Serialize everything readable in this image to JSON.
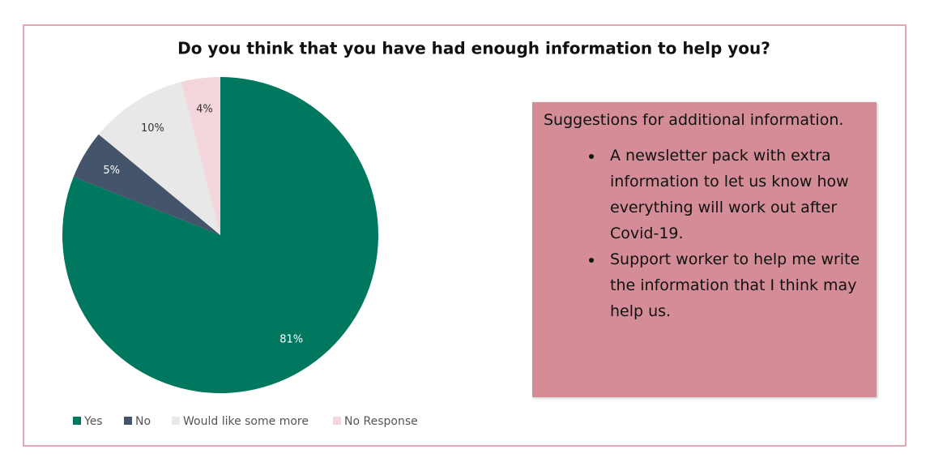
{
  "chart_data": {
    "type": "pie",
    "title": "Do you think that you have had enough information to help you?",
    "categories": [
      "Yes",
      "No",
      "Would like some more",
      "No Response"
    ],
    "values": [
      81,
      5,
      10,
      4
    ],
    "value_labels": [
      "81%",
      "5%",
      "10%",
      "4%"
    ],
    "colors": [
      "#00775f",
      "#44546a",
      "#e8e8e8",
      "#f3d5dc"
    ],
    "legend": "bottom"
  },
  "suggestions": {
    "heading": "Suggestions for additional information.",
    "items": [
      "A newsletter pack with extra information to let us know how everything will work out after Covid-19.",
      "Support worker to help me write the information that I think may help us."
    ]
  }
}
